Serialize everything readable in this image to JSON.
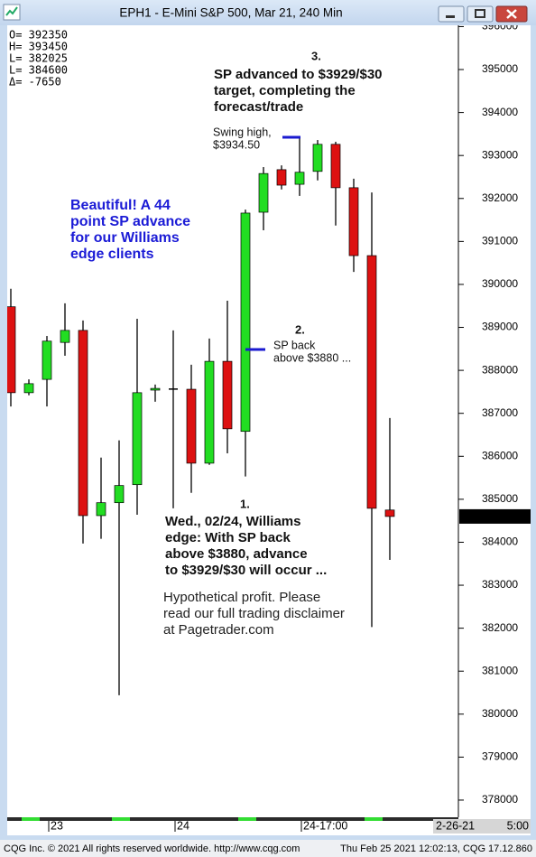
{
  "window_title": "EPH1 - E-Mini S&P 500, Mar 21, 240 Min",
  "info": [
    "O= 392350",
    "H= 393450",
    "L= 382025",
    "L= 384600",
    "Δ=  -7650"
  ],
  "chart_data": {
    "type": "candlestick",
    "categories": [
      null,
      null,
      "23",
      null,
      null,
      null,
      null,
      null,
      null,
      "24",
      null,
      null,
      null,
      null,
      null,
      null,
      "24-17:00",
      null,
      null,
      null,
      null,
      null
    ],
    "open": [
      389480,
      387480,
      387790,
      388650,
      388930,
      384620,
      384920,
      385340,
      387540,
      387580,
      387560,
      385840,
      388210,
      386580,
      391680,
      392670,
      392330,
      392630,
      393260,
      392250,
      390670,
      384750
    ],
    "high": [
      389900,
      387790,
      388800,
      389560,
      389160,
      385970,
      386370,
      389200,
      387670,
      388930,
      388130,
      388740,
      389620,
      391740,
      392730,
      392770,
      393450,
      393360,
      393320,
      392460,
      392140,
      386890
    ],
    "low": [
      387160,
      387420,
      387160,
      388340,
      383970,
      384080,
      380440,
      384640,
      387270,
      384790,
      385150,
      385800,
      386070,
      385530,
      391260,
      392210,
      392060,
      392420,
      391370,
      390290,
      382025,
      383590
    ],
    "close": [
      387480,
      387690,
      388680,
      388930,
      384620,
      384920,
      385320,
      387480,
      387580,
      387580,
      385840,
      388210,
      386640,
      391660,
      392580,
      392310,
      392610,
      393260,
      392250,
      390670,
      384790,
      384600
    ],
    "up_color": "#22dd22",
    "down_color": "#dd1111",
    "ylim": [
      377600,
      396030
    ],
    "yticks": [
      378000,
      379000,
      380000,
      381000,
      382000,
      383000,
      384000,
      385000,
      386000,
      387000,
      388000,
      389000,
      390000,
      391000,
      392000,
      393000,
      394000,
      395000,
      396000
    ],
    "date_box": "2-26-21",
    "time_box": "5:00",
    "annotations": {
      "step3_num": "3.",
      "step3": [
        "SP advanced to $3929/$30",
        "target, completing the",
        "forecast/trade"
      ],
      "swing": [
        "Swing high,",
        "$3934.50"
      ],
      "beautiful": [
        "Beautiful! A 44",
        "point SP advance",
        "for our Williams",
        "edge clients"
      ],
      "step2_num": "2.",
      "step2": [
        "SP back",
        "above $3880 ..."
      ],
      "step1_num": "1.",
      "step1": [
        "Wed., 02/24, Williams",
        "edge: With SP back",
        "above $3880, advance",
        "to $3929/$30 will occur ..."
      ],
      "disclaimer": [
        "Hypothetical profit. Please",
        "read our full trading disclaimer",
        "at Pagetrader.com"
      ]
    }
  },
  "footer": {
    "left": "CQG Inc. © 2021 All rights reserved worldwide. http://www.cqg.com",
    "right": "Thu Feb 25 2021 12:02:13, CQG 17.12.860"
  }
}
